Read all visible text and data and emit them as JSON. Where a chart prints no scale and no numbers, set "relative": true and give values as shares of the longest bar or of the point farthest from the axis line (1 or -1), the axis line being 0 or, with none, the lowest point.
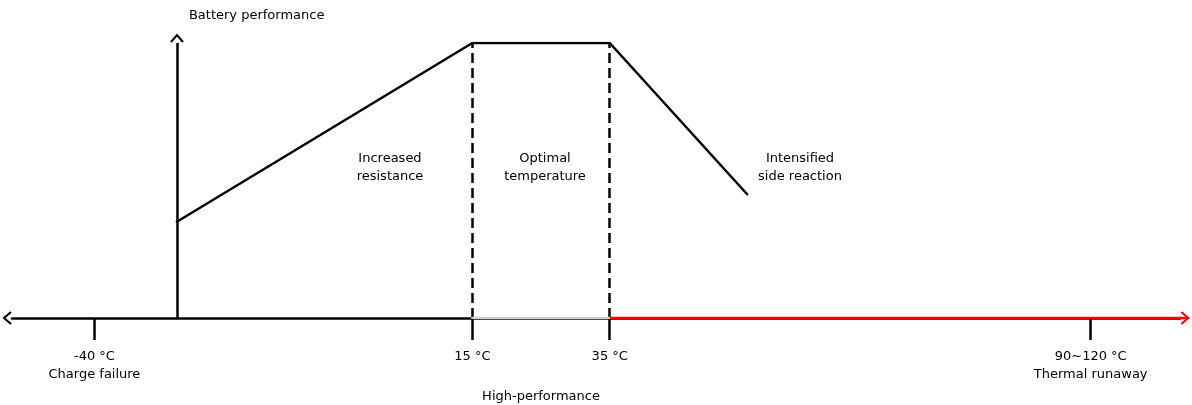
{
  "chart_data": {
    "type": "line",
    "relative": true,
    "ylabel": "Battery performance",
    "x": [
      -28,
      15,
      35,
      55
    ],
    "series": [
      {
        "color": "#000000",
        "values": [
          0.35,
          1,
          1,
          0.45
        ]
      },
      {
        "name": "High-performance",
        "color": "#cccccc",
        "x": [
          15,
          35
        ],
        "values": [
          0,
          0
        ]
      }
    ],
    "xlim": [
      -52,
      118
    ],
    "xticks": [
      {
        "value": -40,
        "label": "-40 °C\nCharge failure"
      },
      {
        "value": 15,
        "label": "15 °C"
      },
      {
        "value": 35,
        "label": "35 °C"
      },
      {
        "value": 105,
        "label": "90~120 °C\nThermal runaway"
      }
    ],
    "ref_lines": [
      {
        "axis": "x",
        "value": -28,
        "color": "#000000"
      },
      {
        "axis": "x",
        "value": 15,
        "line_style": "dashed",
        "color": "#000000"
      },
      {
        "axis": "x",
        "value": 35,
        "line_style": "dashed",
        "color": "#000000"
      }
    ],
    "annotations": [
      "Increased\nresistance",
      "Optimal\ntemperature",
      "Intensified\nside reaction"
    ],
    "grid": false,
    "marker": "none",
    "line_style": "solid"
  }
}
